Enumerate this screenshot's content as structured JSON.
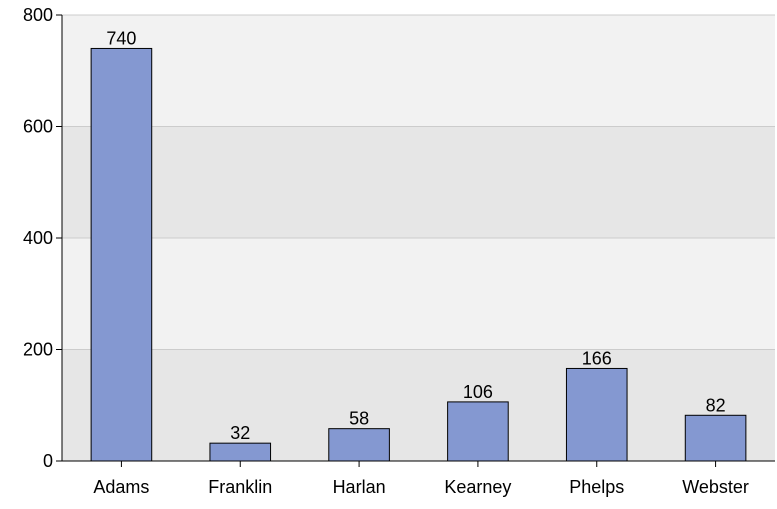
{
  "chart_data": {
    "type": "bar",
    "title": "",
    "xlabel": "",
    "ylabel": "",
    "categories": [
      "Adams",
      "Franklin",
      "Harlan",
      "Kearney",
      "Phelps",
      "Webster"
    ],
    "values": [
      740,
      32,
      58,
      106,
      166,
      82
    ],
    "data_labels": [
      "740",
      "32",
      "58",
      "106",
      "166",
      "82"
    ],
    "ylim": [
      0,
      800
    ],
    "yticks": [
      0,
      200,
      400,
      600,
      800
    ],
    "ytick_labels": [
      "0",
      "200",
      "400",
      "600",
      "800"
    ],
    "grid": "horizontal",
    "legend": "none",
    "colors": {
      "bar_fill": "#8498d1",
      "bar_stroke": "#000000",
      "band_light": "#f2f2f2",
      "band_dark": "#e6e6e6",
      "gridline": "#cccccc",
      "axis": "#000000"
    }
  }
}
